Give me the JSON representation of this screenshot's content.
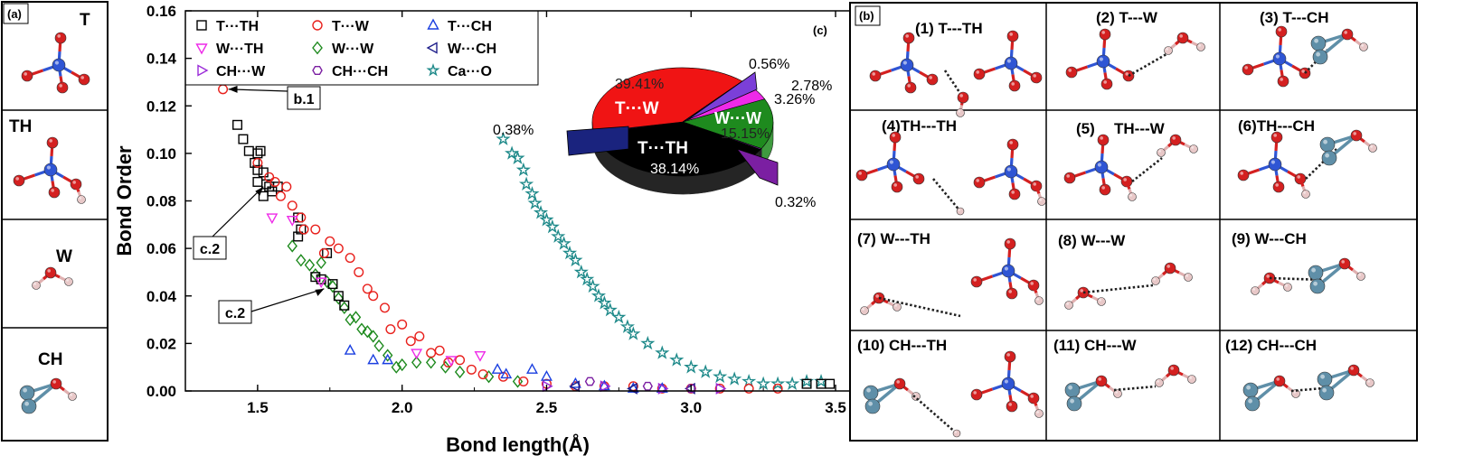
{
  "panel_a": {
    "tag": "(a)",
    "molecules": [
      {
        "label": "T",
        "icon": "tetrahedral-silicate-T-icon"
      },
      {
        "label": "TH",
        "icon": "silanol-tetrahedral-TH-icon"
      },
      {
        "label": "W",
        "icon": "water-molecule-icon"
      },
      {
        "label": "CH",
        "icon": "calcium-hydroxide-CH-icon"
      }
    ]
  },
  "panel_b": {
    "tag": "(b)",
    "cells": [
      {
        "label": "(1) T---TH",
        "icon": "T-TH-hbond-icon"
      },
      {
        "label": "(2) T---W",
        "icon": "T-W-hbond-icon"
      },
      {
        "label": "(3) T---CH",
        "icon": "T-CH-hbond-icon"
      },
      {
        "label": "(4)TH---TH",
        "icon": "TH-TH-hbond-icon"
      },
      {
        "label": "(5)",
        "label2": "TH---W",
        "icon": "TH-W-hbond-icon"
      },
      {
        "label": "(6)TH---CH",
        "icon": "TH-CH-hbond-icon"
      },
      {
        "label": "(7)  W---TH",
        "icon": "W-TH-hbond-icon"
      },
      {
        "label": "(8)  W---W",
        "icon": "W-W-hbond-icon"
      },
      {
        "label": "(9)  W---CH",
        "icon": "W-CH-hbond-icon"
      },
      {
        "label": "(10) CH---TH",
        "icon": "CH-TH-hbond-icon"
      },
      {
        "label": "(11)  CH---W",
        "icon": "CH-W-hbond-icon"
      },
      {
        "label": "(12)  CH---CH",
        "icon": "CH-CH-hbond-icon"
      }
    ]
  },
  "colors": {
    "oxygen": "#d42020",
    "silicon": "#2f55d4",
    "hydrogen": "#e8c8c8",
    "calcium": "#5f8fa8",
    "teal": "#1f8a8a"
  },
  "chart_data": [
    {
      "type": "scatter",
      "xlabel": "Bond length(Å)",
      "ylabel": "Bond Order",
      "xlim": [
        1.25,
        3.55
      ],
      "ylim": [
        0,
        0.16
      ],
      "xticks": [
        "1.5",
        "2.0",
        "2.5",
        "3.0",
        "3.5"
      ],
      "yticks": [
        "0.00",
        "0.02",
        "0.04",
        "0.06",
        "0.08",
        "0.10",
        "0.12",
        "0.14",
        "0.16"
      ],
      "legend_position": "top-left",
      "series": [
        {
          "name": "T···TH",
          "marker": "square",
          "color": "#000000",
          "points": [
            [
              1.43,
              0.112
            ],
            [
              1.45,
              0.106
            ],
            [
              1.47,
              0.101
            ],
            [
              1.49,
              0.096
            ],
            [
              1.5,
              0.1
            ],
            [
              1.51,
              0.101
            ],
            [
              1.5,
              0.093
            ],
            [
              1.52,
              0.092
            ],
            [
              1.53,
              0.087
            ],
            [
              1.54,
              0.086
            ],
            [
              1.55,
              0.084
            ],
            [
              1.5,
              0.088
            ],
            [
              1.52,
              0.082
            ],
            [
              1.57,
              0.086
            ],
            [
              1.64,
              0.073
            ],
            [
              1.65,
              0.068
            ],
            [
              1.64,
              0.065
            ],
            [
              1.7,
              0.048
            ],
            [
              1.72,
              0.047
            ],
            [
              1.74,
              0.058
            ],
            [
              1.76,
              0.045
            ],
            [
              1.78,
              0.04
            ],
            [
              1.8,
              0.036
            ],
            [
              3.4,
              0.003
            ],
            [
              3.45,
              0.003
            ],
            [
              3.48,
              0.003
            ]
          ]
        },
        {
          "name": "T···W",
          "marker": "circle",
          "color": "#e8201c",
          "points": [
            [
              1.38,
              0.127
            ],
            [
              1.5,
              0.096
            ],
            [
              1.54,
              0.09
            ],
            [
              1.56,
              0.088
            ],
            [
              1.58,
              0.082
            ],
            [
              1.6,
              0.086
            ],
            [
              1.62,
              0.078
            ],
            [
              1.65,
              0.073
            ],
            [
              1.66,
              0.068
            ],
            [
              1.7,
              0.068
            ],
            [
              1.73,
              0.058
            ],
            [
              1.75,
              0.063
            ],
            [
              1.78,
              0.06
            ],
            [
              1.82,
              0.056
            ],
            [
              1.85,
              0.05
            ],
            [
              1.88,
              0.043
            ],
            [
              1.9,
              0.04
            ],
            [
              1.94,
              0.035
            ],
            [
              1.96,
              0.026
            ],
            [
              2.0,
              0.028
            ],
            [
              2.03,
              0.021
            ],
            [
              2.06,
              0.023
            ],
            [
              2.1,
              0.016
            ],
            [
              2.13,
              0.017
            ],
            [
              2.16,
              0.012
            ],
            [
              2.2,
              0.013
            ],
            [
              2.24,
              0.009
            ],
            [
              2.28,
              0.007
            ],
            [
              2.35,
              0.006
            ],
            [
              2.42,
              0.004
            ],
            [
              2.5,
              0.003
            ],
            [
              2.6,
              0.002
            ],
            [
              2.7,
              0.002
            ],
            [
              2.8,
              0.002
            ],
            [
              2.9,
              0.001
            ],
            [
              3.0,
              0.001
            ],
            [
              3.1,
              0.001
            ],
            [
              3.2,
              0.001
            ],
            [
              3.3,
              0.001
            ]
          ]
        },
        {
          "name": "T···CH",
          "marker": "triangle-up",
          "color": "#1a3fe0",
          "points": [
            [
              1.82,
              0.017
            ],
            [
              1.9,
              0.013
            ],
            [
              1.95,
              0.013
            ],
            [
              2.33,
              0.009
            ],
            [
              2.36,
              0.007
            ],
            [
              2.45,
              0.009
            ],
            [
              2.5,
              0.006
            ],
            [
              2.6,
              0.003
            ],
            [
              2.7,
              0.002
            ],
            [
              2.8,
              0.001
            ],
            [
              2.9,
              0.001
            ]
          ]
        },
        {
          "name": "W···TH",
          "marker": "triangle-down",
          "color": "#ee2ae8",
          "points": [
            [
              1.55,
              0.073
            ],
            [
              1.62,
              0.072
            ],
            [
              1.72,
              0.046
            ],
            [
              2.05,
              0.016
            ],
            [
              2.17,
              0.013
            ],
            [
              2.27,
              0.015
            ]
          ]
        },
        {
          "name": "W···W",
          "marker": "diamond",
          "color": "#1e8a1e",
          "points": [
            [
              1.62,
              0.061
            ],
            [
              1.65,
              0.055
            ],
            [
              1.68,
              0.053
            ],
            [
              1.7,
              0.049
            ],
            [
              1.72,
              0.054
            ],
            [
              1.74,
              0.046
            ],
            [
              1.76,
              0.044
            ],
            [
              1.78,
              0.039
            ],
            [
              1.8,
              0.035
            ],
            [
              1.82,
              0.03
            ],
            [
              1.84,
              0.031
            ],
            [
              1.86,
              0.026
            ],
            [
              1.88,
              0.025
            ],
            [
              1.9,
              0.023
            ],
            [
              1.92,
              0.019
            ],
            [
              1.95,
              0.015
            ],
            [
              1.98,
              0.01
            ],
            [
              2.0,
              0.011
            ],
            [
              2.05,
              0.012
            ],
            [
              2.1,
              0.012
            ],
            [
              2.15,
              0.01
            ],
            [
              2.2,
              0.008
            ],
            [
              2.3,
              0.006
            ],
            [
              2.4,
              0.004
            ]
          ]
        },
        {
          "name": "W···CH",
          "marker": "triangle-left",
          "color": "#1e1e8a",
          "points": [
            [
              2.6,
              0.002
            ],
            [
              2.8,
              0.001
            ],
            [
              3.0,
              0.001
            ]
          ]
        },
        {
          "name": "CH···W",
          "marker": "triangle-right",
          "color": "#9a2ad8",
          "points": [
            [
              2.5,
              0.002
            ],
            [
              2.7,
              0.002
            ],
            [
              2.9,
              0.001
            ],
            [
              3.1,
              0.001
            ]
          ]
        },
        {
          "name": "CH···CH",
          "marker": "hexagon",
          "color": "#7b1fa2",
          "points": [
            [
              2.65,
              0.004
            ],
            [
              2.85,
              0.002
            ],
            [
              3.0,
              0.001
            ]
          ]
        },
        {
          "name": "Ca···O",
          "marker": "star",
          "color": "#1f8a8a",
          "points": [
            [
              2.35,
              0.106
            ],
            [
              2.38,
              0.1
            ],
            [
              2.4,
              0.098
            ],
            [
              2.42,
              0.093
            ],
            [
              2.43,
              0.087
            ],
            [
              2.45,
              0.083
            ],
            [
              2.46,
              0.079
            ],
            [
              2.48,
              0.075
            ],
            [
              2.5,
              0.072
            ],
            [
              2.52,
              0.069
            ],
            [
              2.54,
              0.065
            ],
            [
              2.56,
              0.062
            ],
            [
              2.58,
              0.058
            ],
            [
              2.6,
              0.055
            ],
            [
              2.62,
              0.05
            ],
            [
              2.64,
              0.047
            ],
            [
              2.66,
              0.044
            ],
            [
              2.68,
              0.04
            ],
            [
              2.7,
              0.037
            ],
            [
              2.72,
              0.034
            ],
            [
              2.75,
              0.031
            ],
            [
              2.78,
              0.027
            ],
            [
              2.8,
              0.024
            ],
            [
              2.85,
              0.02
            ],
            [
              2.9,
              0.016
            ],
            [
              2.95,
              0.013
            ],
            [
              3.0,
              0.01
            ],
            [
              3.05,
              0.008
            ],
            [
              3.1,
              0.006
            ],
            [
              3.15,
              0.005
            ],
            [
              3.2,
              0.004
            ],
            [
              3.25,
              0.003
            ],
            [
              3.3,
              0.003
            ],
            [
              3.35,
              0.003
            ],
            [
              3.4,
              0.004
            ],
            [
              3.45,
              0.004
            ]
          ]
        }
      ],
      "annotations": [
        {
          "text": "b.1",
          "x": 1.38,
          "y": 0.127
        },
        {
          "text": "c.2",
          "x": 1.52,
          "y": 0.086
        },
        {
          "text": "c.2",
          "x": 1.73,
          "y": 0.043
        }
      ]
    },
    {
      "type": "pie",
      "tag": "(c)",
      "slices": [
        {
          "label": "T···TH",
          "value": 38.14,
          "value_label": "38.14%",
          "color": "#000000"
        },
        {
          "label": "T···W",
          "value": 39.41,
          "value_label": "39.41%",
          "color": "#f01414"
        },
        {
          "label": "",
          "value": 0.38,
          "value_label": "0.38%",
          "color": "#1a237e"
        },
        {
          "label": "",
          "value": 0.56,
          "value_label": "0.56%",
          "color": "#7b3fd8"
        },
        {
          "label": "",
          "value": 2.78,
          "value_label": "2.78%",
          "color": "#1f3fe0"
        },
        {
          "label": "",
          "value": 3.26,
          "value_label": "3.26%",
          "color": "#ee2ae8"
        },
        {
          "label": "W···W",
          "value": 15.15,
          "value_label": "15.15%",
          "color": "#1e8a1e"
        },
        {
          "label": "",
          "value": 0.32,
          "value_label": "0.32%",
          "color": "#7b1fa2"
        }
      ]
    }
  ]
}
